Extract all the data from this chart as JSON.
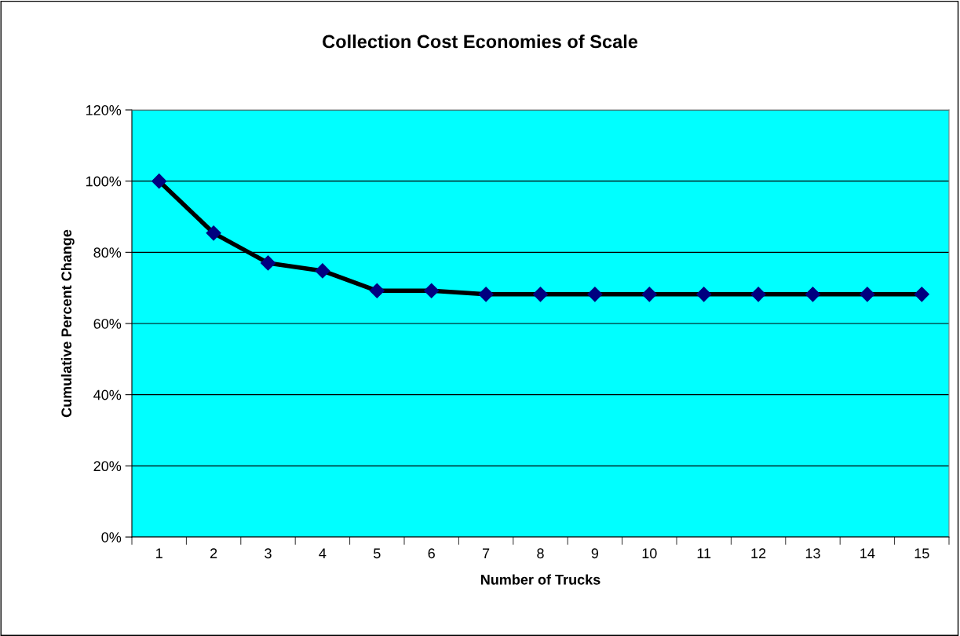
{
  "chart_data": {
    "type": "line",
    "title": "Collection Cost Economies of Scale",
    "xlabel": "Number of Trucks",
    "ylabel": "Cumulative Percent Change",
    "categories": [
      "1",
      "2",
      "3",
      "4",
      "5",
      "6",
      "7",
      "8",
      "9",
      "10",
      "11",
      "12",
      "13",
      "14",
      "15"
    ],
    "series": [
      {
        "color": "#000000",
        "values": [
          100,
          85.4,
          77,
          74.8,
          69.2,
          69.2,
          68.2,
          68.2,
          68.2,
          68.2,
          68.2,
          68.2,
          68.2,
          68.2,
          68.2
        ]
      }
    ],
    "ylim": [
      0,
      120
    ],
    "yticks": [
      {
        "value": 0,
        "label": "0%"
      },
      {
        "value": 20,
        "label": "20%"
      },
      {
        "value": 40,
        "label": "40%"
      },
      {
        "value": 60,
        "label": "60%"
      },
      {
        "value": 80,
        "label": "80%"
      },
      {
        "value": 100,
        "label": "100%"
      },
      {
        "value": 120,
        "label": "120%"
      }
    ],
    "grid": "y",
    "marker": "diamond",
    "line_style": "solid",
    "legend": false
  }
}
